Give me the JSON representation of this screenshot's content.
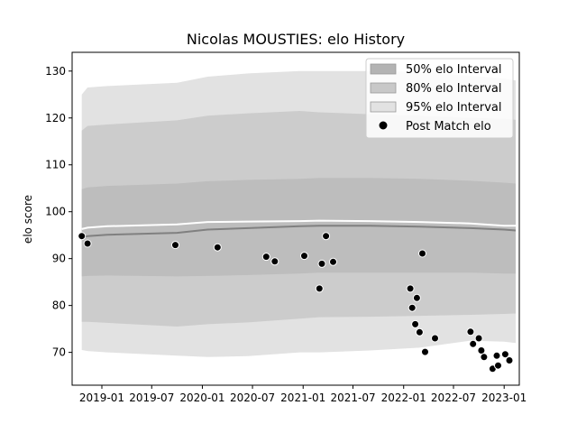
{
  "chart_data": {
    "type": "line",
    "title": "Nicolas MOUSTIES: elo History",
    "xlabel": "",
    "ylabel": "elo score",
    "xlim": [
      "2018-09-15",
      "2023-02-25"
    ],
    "ylim": [
      63,
      134
    ],
    "x_ticks": [
      "2019-01",
      "2019-07",
      "2020-01",
      "2020-07",
      "2021-01",
      "2021-07",
      "2022-01",
      "2022-07",
      "2023-01"
    ],
    "y_ticks": [
      70,
      80,
      90,
      100,
      110,
      120,
      130
    ],
    "grid": false,
    "legend_position": "top-right",
    "legend": [
      {
        "label": "50% elo Interval",
        "color": "#aaaaaa"
      },
      {
        "label": "80% elo Interval",
        "color": "#c4c4c4"
      },
      {
        "label": "95% elo Interval",
        "color": "#e2e2e2"
      },
      {
        "label": "Post Match elo",
        "color": "#000000"
      }
    ],
    "band_dates": [
      "2018-10-20",
      "2018-11-10",
      "2019-01-20",
      "2019-10-01",
      "2020-01-20",
      "2020-06-15",
      "2020-12-20",
      "2021-03-01",
      "2021-09-01",
      "2022-03-01",
      "2022-09-01",
      "2023-01-01",
      "2023-02-12"
    ],
    "mean": [
      94.5,
      94.8,
      95.1,
      95.5,
      96.2,
      96.5,
      96.9,
      97.0,
      97.0,
      96.8,
      96.5,
      96.2,
      96.0
    ],
    "upper_line": [
      96.3,
      96.6,
      96.9,
      97.3,
      97.8,
      97.9,
      98.0,
      98.1,
      98.0,
      97.8,
      97.5,
      97.0,
      97.0
    ],
    "bands": [
      {
        "name": "95% elo Interval",
        "lower": [
          70.5,
          70.3,
          70.0,
          69.3,
          69.0,
          69.2,
          70.0,
          70.0,
          70.4,
          71.0,
          72.5,
          72.3,
          72.0
        ],
        "upper": [
          125.0,
          126.5,
          126.8,
          127.5,
          128.8,
          129.5,
          130.0,
          130.0,
          130.0,
          129.8,
          129.0,
          128.4,
          128.0
        ]
      },
      {
        "name": "80% elo Interval",
        "lower": [
          76.5,
          76.5,
          76.3,
          75.5,
          76.0,
          76.4,
          77.2,
          77.5,
          77.6,
          77.8,
          78.0,
          78.2,
          78.3
        ]
      },
      {
        "name": "50% elo Interval",
        "lower": [
          86.2,
          86.3,
          86.4,
          86.2,
          86.3,
          86.5,
          86.8,
          87.0,
          87.0,
          87.0,
          87.0,
          86.8,
          86.8
        ],
        "upper": [
          104.8,
          105.2,
          105.5,
          106.0,
          106.5,
          106.8,
          107.0,
          107.2,
          107.2,
          107.0,
          106.6,
          106.2,
          106.0
        ]
      }
    ],
    "band80_upper": [
      117.3,
      118.3,
      118.6,
      119.5,
      120.5,
      121.0,
      121.5,
      121.2,
      120.8,
      120.5,
      120.0,
      119.8,
      119.6
    ],
    "points": [
      {
        "x": "2018-10-20",
        "y": 94.8
      },
      {
        "x": "2018-11-10",
        "y": 93.2
      },
      {
        "x": "2019-09-25",
        "y": 92.9
      },
      {
        "x": "2020-02-25",
        "y": 92.4
      },
      {
        "x": "2020-08-20",
        "y": 90.4
      },
      {
        "x": "2020-09-20",
        "y": 89.4
      },
      {
        "x": "2021-01-05",
        "y": 90.6
      },
      {
        "x": "2021-03-01",
        "y": 83.6
      },
      {
        "x": "2021-03-10",
        "y": 88.9
      },
      {
        "x": "2021-03-25",
        "y": 94.8
      },
      {
        "x": "2021-04-20",
        "y": 89.3
      },
      {
        "x": "2022-01-25",
        "y": 83.6
      },
      {
        "x": "2022-02-01",
        "y": 79.5
      },
      {
        "x": "2022-02-12",
        "y": 76.0
      },
      {
        "x": "2022-02-18",
        "y": 81.6
      },
      {
        "x": "2022-02-28",
        "y": 74.3
      },
      {
        "x": "2022-03-10",
        "y": 91.1
      },
      {
        "x": "2022-03-20",
        "y": 70.1
      },
      {
        "x": "2022-04-25",
        "y": 73.0
      },
      {
        "x": "2022-09-01",
        "y": 74.4
      },
      {
        "x": "2022-09-10",
        "y": 71.8
      },
      {
        "x": "2022-10-01",
        "y": 73.0
      },
      {
        "x": "2022-10-10",
        "y": 70.4
      },
      {
        "x": "2022-10-20",
        "y": 69.0
      },
      {
        "x": "2022-11-20",
        "y": 66.5
      },
      {
        "x": "2022-12-05",
        "y": 69.3
      },
      {
        "x": "2022-12-10",
        "y": 67.2
      },
      {
        "x": "2023-01-05",
        "y": 69.6
      },
      {
        "x": "2023-01-20",
        "y": 68.3
      }
    ]
  }
}
